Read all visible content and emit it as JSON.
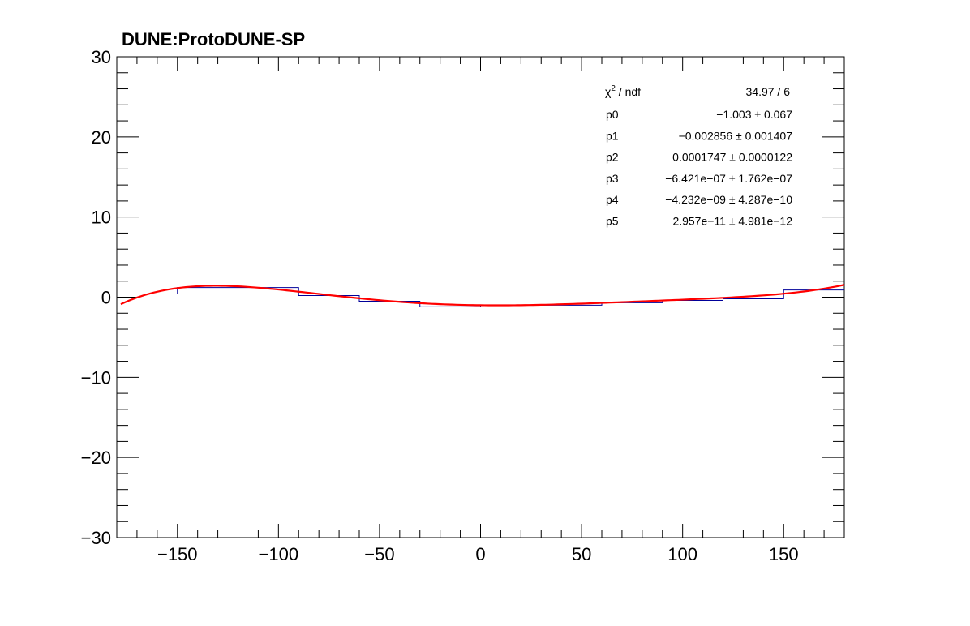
{
  "chart_data": {
    "type": "line",
    "title": "DUNE:ProtoDUNE-SP",
    "xlabel": "",
    "ylabel": "",
    "xlim": [
      -180,
      180
    ],
    "ylim": [
      -30,
      30
    ],
    "x_ticks": [
      "−150",
      "−100",
      "−50",
      "0",
      "50",
      "100",
      "150"
    ],
    "x_tick_values": [
      -150,
      -100,
      -50,
      0,
      50,
      100,
      150
    ],
    "y_ticks": [
      "−30",
      "−20",
      "−10",
      "0",
      "10",
      "20",
      "30"
    ],
    "y_tick_values": [
      -30,
      -20,
      -10,
      0,
      10,
      20,
      30
    ],
    "grid": false,
    "histogram": {
      "color": "#000099",
      "bin_edges": [
        -180,
        -150,
        -120,
        -90,
        -60,
        -30,
        0,
        30,
        60,
        90,
        120,
        150,
        180
      ],
      "values": [
        0.4,
        1.2,
        1.2,
        0.2,
        -0.5,
        -1.2,
        -1.0,
        -1.0,
        -0.7,
        -0.4,
        -0.2,
        0.9
      ]
    },
    "fit": {
      "color": "#ff0000",
      "params": [
        -1.003,
        -0.002856,
        0.0001747,
        -6.421e-07,
        -4.232e-09,
        2.957e-11
      ]
    },
    "stats": {
      "header_label": "ndf",
      "header_value": "34.97 / 6",
      "rows": [
        {
          "label": "p0",
          "value": "−1.003",
          "error": "± 0.067"
        },
        {
          "label": "p1",
          "value": "−0.002856",
          "error": "± 0.001407"
        },
        {
          "label": "p2",
          "value": "0.0001747",
          "error": "± 0.0000122"
        },
        {
          "label": "p3",
          "value": "−6.421e−07",
          "error": "± 1.762e−07"
        },
        {
          "label": "p4",
          "value": "−4.232e−09",
          "error": "± 4.287e−10"
        },
        {
          "label": "p5",
          "value": "2.957e−11",
          "error": "± 4.981e−12"
        }
      ]
    }
  }
}
